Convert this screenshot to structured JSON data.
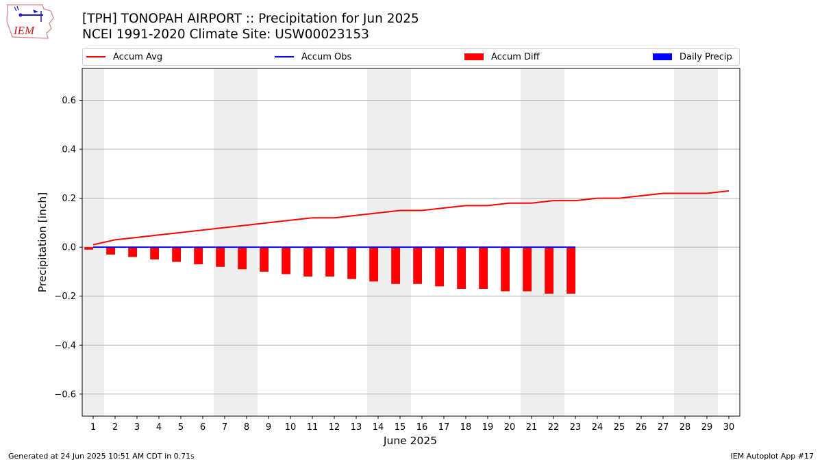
{
  "logo": {
    "text": "IEM"
  },
  "header": {
    "title_line1": "[TPH] TONOPAH AIRPORT :: Precipitation for Jun 2025",
    "title_line2": "NCEI 1991-2020 Climate Site: USW00023153"
  },
  "legend": {
    "items": [
      {
        "label": "Accum Avg",
        "kind": "line",
        "color": "#ff0000"
      },
      {
        "label": "Accum Obs",
        "kind": "line",
        "color": "#0000ff"
      },
      {
        "label": "Accum Diff",
        "kind": "box",
        "color": "#ff0000"
      },
      {
        "label": "Daily Precip",
        "kind": "box",
        "color": "#0000ff"
      }
    ]
  },
  "chart_data": {
    "type": "bar",
    "xlabel": "June 2025",
    "ylabel": "Precipitation [inch]",
    "xlim": [
      0.5,
      30.5
    ],
    "ylim": [
      -0.69,
      0.73
    ],
    "yticks": [
      -0.6,
      -0.4,
      -0.2,
      0.0,
      0.2,
      0.4,
      0.6
    ],
    "ytick_labels": [
      "−0.6",
      "−0.4",
      "−0.2",
      "0.0",
      "0.2",
      "0.4",
      "0.6"
    ],
    "grid": "horizontal",
    "legend_position": "top",
    "weekend_shading": [
      [
        0.5,
        1.5
      ],
      [
        6.5,
        8.5
      ],
      [
        13.5,
        15.5
      ],
      [
        20.5,
        22.5
      ],
      [
        27.5,
        29.5
      ]
    ],
    "x": [
      1,
      2,
      3,
      4,
      5,
      6,
      7,
      8,
      9,
      10,
      11,
      12,
      13,
      14,
      15,
      16,
      17,
      18,
      19,
      20,
      21,
      22,
      23,
      24,
      25,
      26,
      27,
      28,
      29,
      30
    ],
    "accum_avg": [
      0.01,
      0.03,
      0.04,
      0.05,
      0.06,
      0.07,
      0.08,
      0.09,
      0.1,
      0.11,
      0.12,
      0.12,
      0.13,
      0.14,
      0.15,
      0.15,
      0.16,
      0.17,
      0.17,
      0.18,
      0.18,
      0.19,
      0.19,
      0.2,
      0.2,
      0.21,
      0.22,
      0.22,
      0.22,
      0.23
    ],
    "accum_obs": [
      0,
      0,
      0,
      0,
      0,
      0,
      0,
      0,
      0,
      0,
      0,
      0,
      0,
      0,
      0,
      0,
      0,
      0,
      0,
      0,
      0,
      0,
      0
    ],
    "accum_diff": [
      -0.01,
      -0.03,
      -0.04,
      -0.05,
      -0.06,
      -0.07,
      -0.08,
      -0.09,
      -0.1,
      -0.11,
      -0.12,
      -0.12,
      -0.13,
      -0.14,
      -0.15,
      -0.15,
      -0.16,
      -0.17,
      -0.17,
      -0.18,
      -0.18,
      -0.19,
      -0.19
    ],
    "daily_precip": [
      0,
      0,
      0,
      0,
      0,
      0,
      0,
      0,
      0,
      0,
      0,
      0,
      0,
      0,
      0,
      0,
      0,
      0,
      0,
      0,
      0,
      0,
      0
    ],
    "colors": {
      "avg": "#ff0000",
      "obs": "#0000ff",
      "diff": "#ff0000",
      "daily": "#0000ff",
      "shade": "#eeeeee",
      "grid": "#b0b0b0"
    }
  },
  "footer": {
    "left": "Generated at 24 Jun 2025 10:51 AM CDT in 0.71s",
    "right": "IEM Autoplot App #17"
  }
}
